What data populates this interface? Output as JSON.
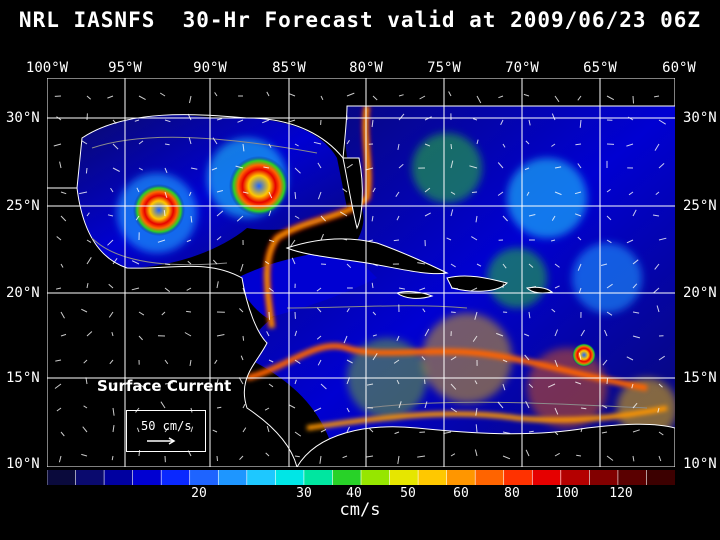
{
  "title": "NRL IASNFS  30-Hr Forecast valid at 2009/06/23 06Z",
  "lon_labels": [
    "100°W",
    "95°W",
    "90°W",
    "85°W",
    "80°W",
    "75°W",
    "70°W",
    "65°W",
    "60°W"
  ],
  "lat_labels": [
    "30°N",
    "25°N",
    "20°N",
    "15°N",
    "10°N"
  ],
  "product_label": "Surface Current",
  "reference_vector": "50 cm/s",
  "colorbar": {
    "colors": [
      "#0a0a3c",
      "#0a0a6e",
      "#0000a0",
      "#0000d2",
      "#0a28ff",
      "#1e64ff",
      "#1e96ff",
      "#1ec8ff",
      "#00e6e6",
      "#00e6a0",
      "#28d228",
      "#96e600",
      "#e6e600",
      "#ffc800",
      "#ff9600",
      "#ff6400",
      "#ff3200",
      "#e60000",
      "#b40000",
      "#820000",
      "#5a0000",
      "#3c0000"
    ],
    "tick_labels": [
      "20",
      "30",
      "40",
      "50",
      "60",
      "80",
      "100",
      "120"
    ],
    "units": "cm/s"
  }
}
